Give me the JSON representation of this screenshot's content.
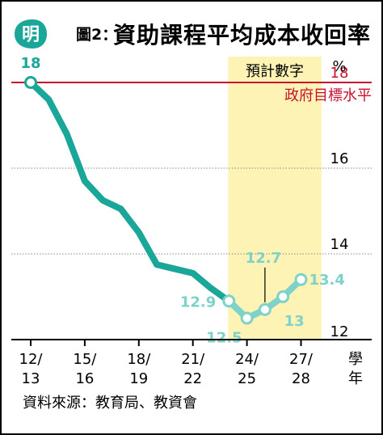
{
  "header": {
    "logo_text": "明",
    "figure_label": "圖2：",
    "title": "資助課程平均成本收回率"
  },
  "chart_data": {
    "type": "line",
    "title": "資助課程平均成本收回率",
    "xlabel": "學年",
    "ylabel": "%",
    "ylim": [
      12,
      19
    ],
    "yticks": [
      12,
      14,
      16,
      18
    ],
    "grid": true,
    "categories": [
      "12/13",
      "15/16",
      "18/19",
      "21/22",
      "24/25",
      "27/28"
    ],
    "series": [
      {
        "values": [
          {
            "x": 2012,
            "y": 18.0
          },
          {
            "x": 2013,
            "y": 17.6
          },
          {
            "x": 2014,
            "y": 16.8
          },
          {
            "x": 2015,
            "y": 15.7
          },
          {
            "x": 2016,
            "y": 15.25
          },
          {
            "x": 2017,
            "y": 15.05
          },
          {
            "x": 2018,
            "y": 14.5
          },
          {
            "x": 2019,
            "y": 13.75
          },
          {
            "x": 2020,
            "y": 13.65
          },
          {
            "x": 2021,
            "y": 13.55
          },
          {
            "x": 2022,
            "y": 13.2
          },
          {
            "x": 2023,
            "y": 12.9
          }
        ]
      },
      {
        "values": [
          {
            "x": 2023,
            "y": 12.9
          },
          {
            "x": 2024,
            "y": 12.5
          },
          {
            "x": 2025,
            "y": 12.7
          },
          {
            "x": 2026,
            "y": 13.0
          },
          {
            "x": 2027,
            "y": 13.4
          }
        ]
      }
    ],
    "data_labels": [
      {
        "x": 2012,
        "y": 18,
        "text": "18"
      },
      {
        "x": 2023,
        "y": 12.9,
        "text": "12.9"
      },
      {
        "x": 2024,
        "y": 12.5,
        "text": "12.5"
      },
      {
        "x": 2025,
        "y": 12.7,
        "text": "12.7"
      },
      {
        "x": 2026,
        "y": 13.0,
        "text": "13"
      },
      {
        "x": 2027,
        "y": 13.4,
        "text": "13.4"
      }
    ],
    "target_line": {
      "value": 18,
      "label": "政府目標水平",
      "value_label": "18"
    },
    "forecast_region": {
      "from": 2023,
      "to": 2028,
      "label": "預計數字"
    },
    "colors": {
      "actual": "#1aa79a",
      "forecast": "#7fd2c9",
      "target": "#c8102e",
      "forecast_band": "#fdf3b4",
      "grid": "#888888"
    }
  },
  "source": "資料來源：教育局、教資會"
}
